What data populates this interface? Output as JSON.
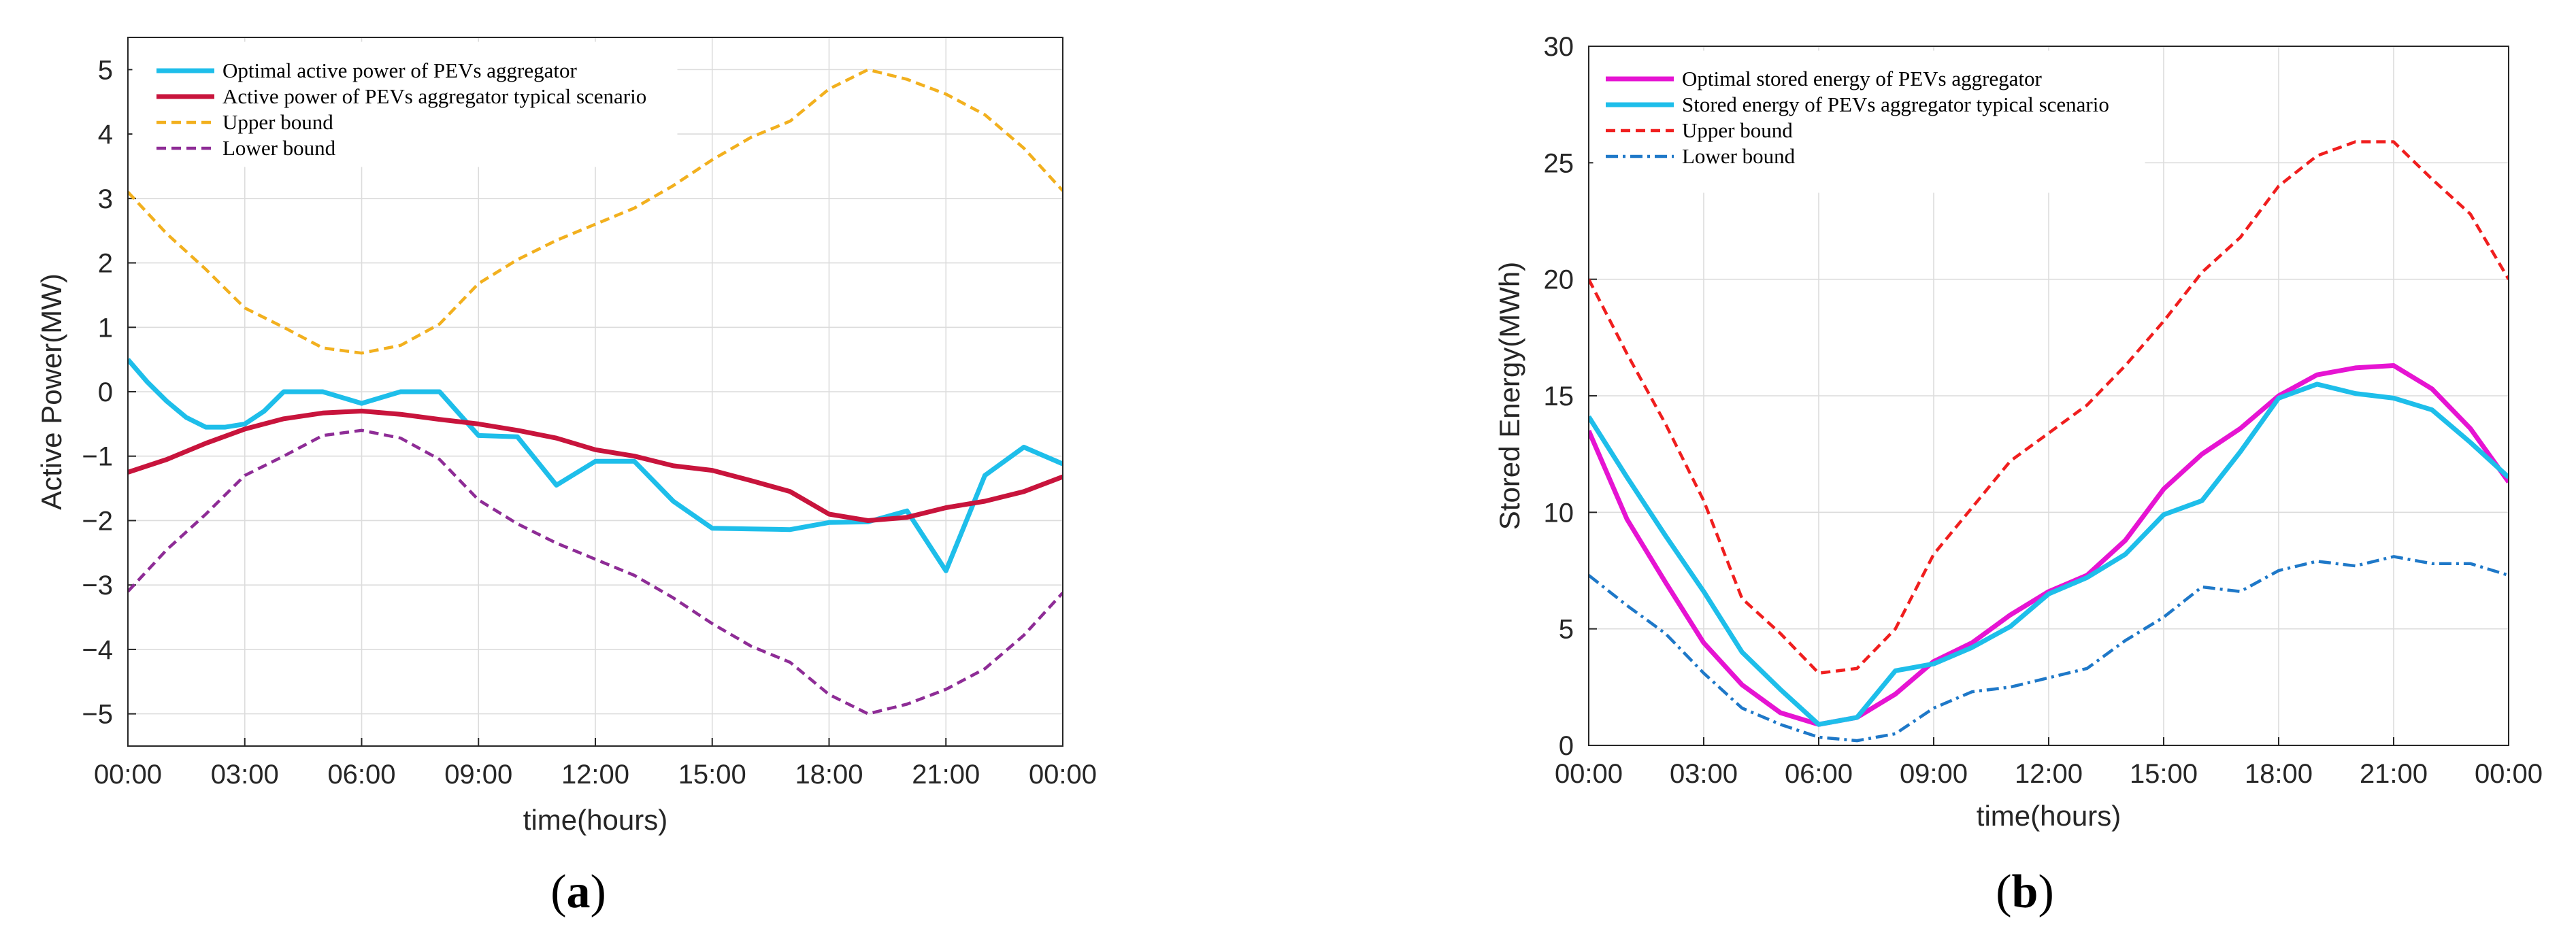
{
  "figure": {
    "captions": [
      "(a)",
      "(b)"
    ],
    "caption_letters": [
      "a",
      "b"
    ]
  },
  "chart_data": [
    {
      "id": "a",
      "type": "line",
      "xlabel": "time(hours)",
      "ylabel": "Active Power(MW)",
      "xlim": [
        0,
        24
      ],
      "ylim": [
        -5.5,
        5.5
      ],
      "x_ticks": [
        0,
        3,
        6,
        9,
        12,
        15,
        18,
        21,
        24
      ],
      "x_tick_labels": [
        "00:00",
        "03:00",
        "06:00",
        "09:00",
        "12:00",
        "15:00",
        "18:00",
        "21:00",
        "00:00"
      ],
      "y_ticks": [
        -5,
        -4,
        -3,
        -2,
        -1,
        0,
        1,
        2,
        3,
        4,
        5
      ],
      "y_tick_labels": [
        "−5",
        "−4",
        "−3",
        "−2",
        "−1",
        "0",
        "1",
        "2",
        "3",
        "4",
        "5"
      ],
      "grid": true,
      "legend_position": "top-left",
      "series": [
        {
          "name": "Optimal active power of PEVs aggregator",
          "color": "#1EBEEA",
          "style": "solid",
          "x": [
            0,
            0.5,
            1,
            1.5,
            2,
            2.5,
            3,
            3.5,
            4,
            5,
            6,
            7,
            8,
            9,
            10,
            11,
            12,
            13,
            14,
            15,
            16,
            17,
            18,
            19,
            20,
            21,
            22,
            23,
            24
          ],
          "y": [
            0.5,
            0.15,
            -0.15,
            -0.4,
            -0.55,
            -0.55,
            -0.5,
            -0.3,
            0.0,
            0.0,
            -0.18,
            0.0,
            0.0,
            -0.68,
            -0.7,
            -1.45,
            -1.08,
            -1.08,
            -1.7,
            -2.12,
            -2.13,
            -2.14,
            -2.03,
            -2.02,
            -1.85,
            -2.78,
            -1.3,
            -0.86,
            -1.12
          ]
        },
        {
          "name": "Active power of PEVs aggregator typical scenario",
          "color": "#C8143C",
          "style": "solid",
          "x": [
            0,
            1,
            2,
            3,
            4,
            5,
            6,
            7,
            8,
            9,
            10,
            11,
            12,
            13,
            14,
            15,
            16,
            17,
            18,
            19,
            20,
            21,
            22,
            23,
            24
          ],
          "y": [
            -1.25,
            -1.05,
            -0.8,
            -0.58,
            -0.42,
            -0.33,
            -0.3,
            -0.35,
            -0.43,
            -0.5,
            -0.6,
            -0.72,
            -0.9,
            -1.0,
            -1.15,
            -1.22,
            -1.38,
            -1.55,
            -1.9,
            -2.0,
            -1.95,
            -1.8,
            -1.7,
            -1.55,
            -1.32
          ]
        },
        {
          "name": "Upper bound",
          "color": "#F2B01E",
          "style": "dashed",
          "x": [
            0,
            1,
            2,
            3,
            4,
            5,
            6,
            7,
            8,
            9,
            10,
            11,
            12,
            13,
            14,
            15,
            16,
            17,
            18,
            19,
            20,
            21,
            22,
            23,
            24
          ],
          "y": [
            3.1,
            2.45,
            1.9,
            1.3,
            1.0,
            0.68,
            0.6,
            0.72,
            1.05,
            1.68,
            2.05,
            2.35,
            2.6,
            2.85,
            3.2,
            3.6,
            3.95,
            4.2,
            4.7,
            5.0,
            4.85,
            4.62,
            4.3,
            3.78,
            3.12
          ]
        },
        {
          "name": "Lower bound",
          "color": "#8E2C96",
          "style": "dashed",
          "x": [
            0,
            1,
            2,
            3,
            4,
            5,
            6,
            7,
            8,
            9,
            10,
            11,
            12,
            13,
            14,
            15,
            16,
            17,
            18,
            19,
            20,
            21,
            22,
            23,
            24
          ],
          "y": [
            -3.1,
            -2.45,
            -1.9,
            -1.3,
            -1.0,
            -0.68,
            -0.6,
            -0.72,
            -1.05,
            -1.68,
            -2.05,
            -2.35,
            -2.6,
            -2.85,
            -3.2,
            -3.6,
            -3.95,
            -4.2,
            -4.7,
            -5.0,
            -4.85,
            -4.62,
            -4.3,
            -3.78,
            -3.12
          ]
        }
      ]
    },
    {
      "id": "b",
      "type": "line",
      "xlabel": "time(hours)",
      "ylabel": "Stored Energy(MWh)",
      "xlim": [
        0,
        24
      ],
      "ylim": [
        0,
        30
      ],
      "x_ticks": [
        0,
        3,
        6,
        9,
        12,
        15,
        18,
        21,
        24
      ],
      "x_tick_labels": [
        "00:00",
        "03:00",
        "06:00",
        "09:00",
        "12:00",
        "15:00",
        "18:00",
        "21:00",
        "00:00"
      ],
      "y_ticks": [
        0,
        5,
        10,
        15,
        20,
        25,
        30
      ],
      "y_tick_labels": [
        "0",
        "5",
        "10",
        "15",
        "20",
        "25",
        "30"
      ],
      "grid": true,
      "legend_position": "top-left",
      "series": [
        {
          "name": "Optimal stored energy of PEVs aggregator",
          "color": "#E614D2",
          "style": "solid",
          "x": [
            0,
            1,
            2,
            3,
            4,
            5,
            6,
            7,
            8,
            9,
            10,
            11,
            12,
            13,
            14,
            15,
            16,
            17,
            18,
            19,
            20,
            21,
            22,
            23,
            24
          ],
          "y": [
            13.5,
            9.7,
            7.0,
            4.4,
            2.6,
            1.4,
            0.9,
            1.2,
            2.2,
            3.6,
            4.4,
            5.6,
            6.6,
            7.3,
            8.8,
            11.0,
            12.5,
            13.6,
            15.0,
            15.9,
            16.2,
            16.3,
            15.3,
            13.6,
            11.3
          ]
        },
        {
          "name": "Stored energy of PEVs aggregator typical scenario",
          "color": "#1EBEEA",
          "style": "solid",
          "x": [
            0,
            1,
            2,
            3,
            4,
            5,
            6,
            7,
            8,
            9,
            10,
            11,
            12,
            13,
            14,
            15,
            16,
            17,
            18,
            19,
            20,
            21,
            22,
            23,
            24
          ],
          "y": [
            14.1,
            11.5,
            9.0,
            6.6,
            4.0,
            2.4,
            0.9,
            1.2,
            3.2,
            3.5,
            4.2,
            5.1,
            6.5,
            7.2,
            8.2,
            9.9,
            10.5,
            12.6,
            14.9,
            15.5,
            15.1,
            14.9,
            14.4,
            13.0,
            11.5
          ]
        },
        {
          "name": "Upper bound",
          "color": "#F01E1E",
          "style": "dashed",
          "x": [
            0,
            1,
            2,
            3,
            4,
            5,
            6,
            7,
            8,
            9,
            10,
            11,
            12,
            13,
            14,
            15,
            16,
            17,
            18,
            19,
            20,
            21,
            22,
            23,
            24
          ],
          "y": [
            20.0,
            16.8,
            13.8,
            10.5,
            6.3,
            4.8,
            3.1,
            3.3,
            5.0,
            8.2,
            10.2,
            12.2,
            13.4,
            14.6,
            16.3,
            18.2,
            20.3,
            21.8,
            24.0,
            25.3,
            25.9,
            25.9,
            24.3,
            22.8,
            20.0
          ]
        },
        {
          "name": "Lower bound",
          "color": "#1E78C8",
          "style": "dashdot",
          "x": [
            0,
            1,
            2,
            3,
            4,
            5,
            6,
            7,
            8,
            9,
            10,
            11,
            12,
            13,
            14,
            15,
            16,
            17,
            18,
            19,
            20,
            21,
            22,
            23,
            24
          ],
          "y": [
            7.3,
            6.0,
            4.8,
            3.1,
            1.6,
            0.9,
            0.35,
            0.2,
            0.5,
            1.6,
            2.3,
            2.5,
            2.9,
            3.3,
            4.5,
            5.5,
            6.8,
            6.6,
            7.5,
            7.9,
            7.7,
            8.1,
            7.8,
            7.8,
            7.3
          ]
        }
      ]
    }
  ]
}
